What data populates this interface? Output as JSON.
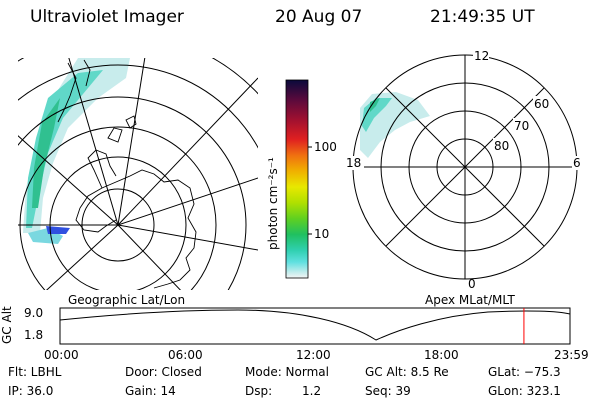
{
  "header": {
    "instrument": "Ultraviolet Imager",
    "date": "20 Aug 07",
    "time": "21:49:35 UT"
  },
  "colorbar": {
    "label": "photon cm⁻²s⁻¹",
    "ticks": [
      "100",
      "10"
    ],
    "colors": [
      "#0a0a3c",
      "#5a0a3c",
      "#a01030",
      "#e02020",
      "#f07010",
      "#f0b000",
      "#e8e800",
      "#b0e000",
      "#60d020",
      "#20c060",
      "#30d0b0",
      "#60e0e0",
      "#c0ecec",
      "#f4f4f4"
    ]
  },
  "geo_map": {
    "caption": "Geographic Lat/Lon"
  },
  "polar_plot": {
    "caption": "Apex MLat/MLT",
    "mlt_labels": {
      "top": "12",
      "left": "18",
      "right": "6",
      "bottom": "0"
    },
    "lat_labels": [
      "60",
      "70",
      "80"
    ]
  },
  "altitude_panel": {
    "axis_label": "GC Alt",
    "y_ticks": [
      "9.0",
      "1.8"
    ],
    "x_ticks": [
      "00:00",
      "06:00",
      "12:00",
      "18:00",
      "23:59"
    ],
    "marker_time": "21:49",
    "marker_color": "#ff0000"
  },
  "info": {
    "filter": "Flt: LBHL",
    "ip": "IP: 36.0",
    "door": "Door: Closed",
    "gain": "Gain: 14",
    "mode": "Mode: Normal",
    "dsp_label": "Dsp:",
    "dsp_value": "1.2",
    "gc_alt": "GC Alt: 8.5 Re",
    "seq": "Seq: 39",
    "glat": "GLat: −75.3",
    "glon": "GLon: 323.1"
  }
}
